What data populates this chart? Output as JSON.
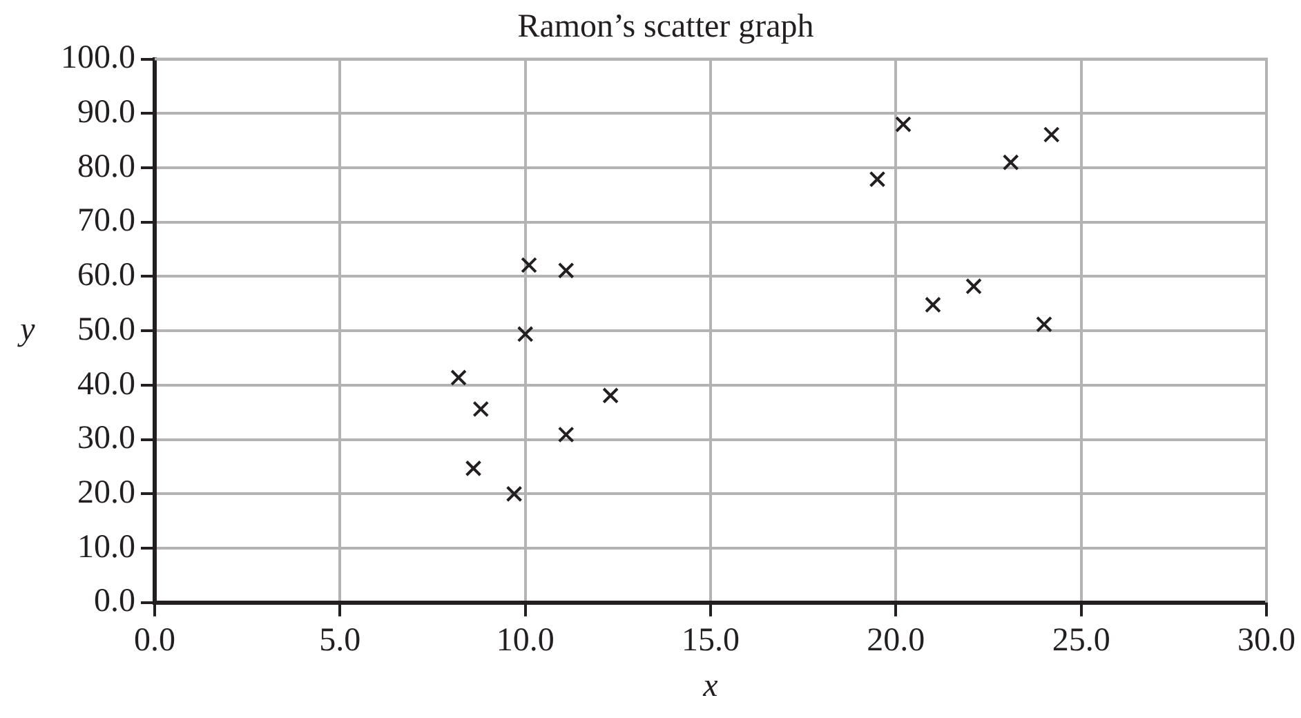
{
  "chart_data": {
    "type": "scatter",
    "title": "Ramon’s scatter graph",
    "xlabel": "x",
    "ylabel": "y",
    "x": [
      8.2,
      8.8,
      8.6,
      9.7,
      10.0,
      10.1,
      11.1,
      11.1,
      12.3,
      19.5,
      20.2,
      21.0,
      22.1,
      23.1,
      24.2,
      24.0
    ],
    "values": [
      41.4,
      35.6,
      24.7,
      20.0,
      49.4,
      62.1,
      61.1,
      30.9,
      38.1,
      77.9,
      88.0,
      54.8,
      58.2,
      81.0,
      86.1,
      51.2
    ],
    "color": "#231f20",
    "marker": "cross",
    "grid": true,
    "legend": false,
    "xlim": [
      0,
      30
    ],
    "xticks": [
      {
        "value": 0,
        "label": "0.0"
      },
      {
        "value": 5,
        "label": "5.0"
      },
      {
        "value": 10,
        "label": "10.0"
      },
      {
        "value": 15,
        "label": "15.0"
      },
      {
        "value": 20,
        "label": "20.0"
      },
      {
        "value": 25,
        "label": "25.0"
      },
      {
        "value": 30,
        "label": "30.0"
      }
    ],
    "ylim": [
      0,
      100
    ],
    "yticks": [
      {
        "value": 0,
        "label": "0.0"
      },
      {
        "value": 10,
        "label": "10.0"
      },
      {
        "value": 20,
        "label": "20.0"
      },
      {
        "value": 30,
        "label": "30.0"
      },
      {
        "value": 40,
        "label": "40.0"
      },
      {
        "value": 50,
        "label": "50.0"
      },
      {
        "value": 60,
        "label": "60.0"
      },
      {
        "value": 70,
        "label": "70.0"
      },
      {
        "value": 80,
        "label": "80.0"
      },
      {
        "value": 90,
        "label": "90.0"
      },
      {
        "value": 100,
        "label": "100.0"
      }
    ]
  }
}
